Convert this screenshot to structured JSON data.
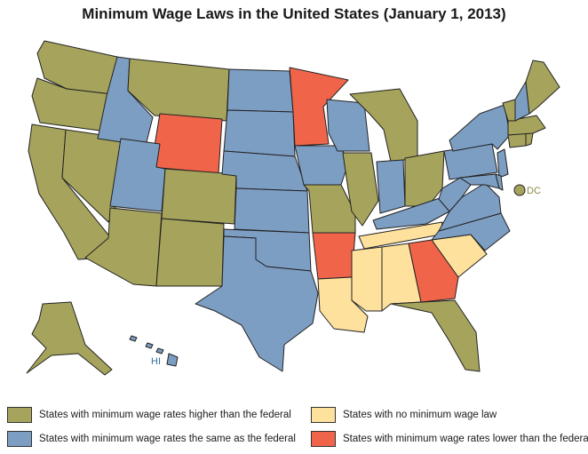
{
  "title": "Minimum Wage Laws in the United States (January 1, 2013)",
  "colors": {
    "higher": "#a6a45c",
    "same": "#7d9ec3",
    "none": "#fde19c",
    "lower": "#f0654a"
  },
  "map_labels": {
    "dc": "DC",
    "hi": "HI"
  },
  "legend": {
    "higher": "States with minimum wage rates higher than the federal",
    "same": "States with minimum wage rates the same as the federal",
    "none": "States with no minimum wage law",
    "lower": "States with minimum wage rates lower than the federal"
  }
}
